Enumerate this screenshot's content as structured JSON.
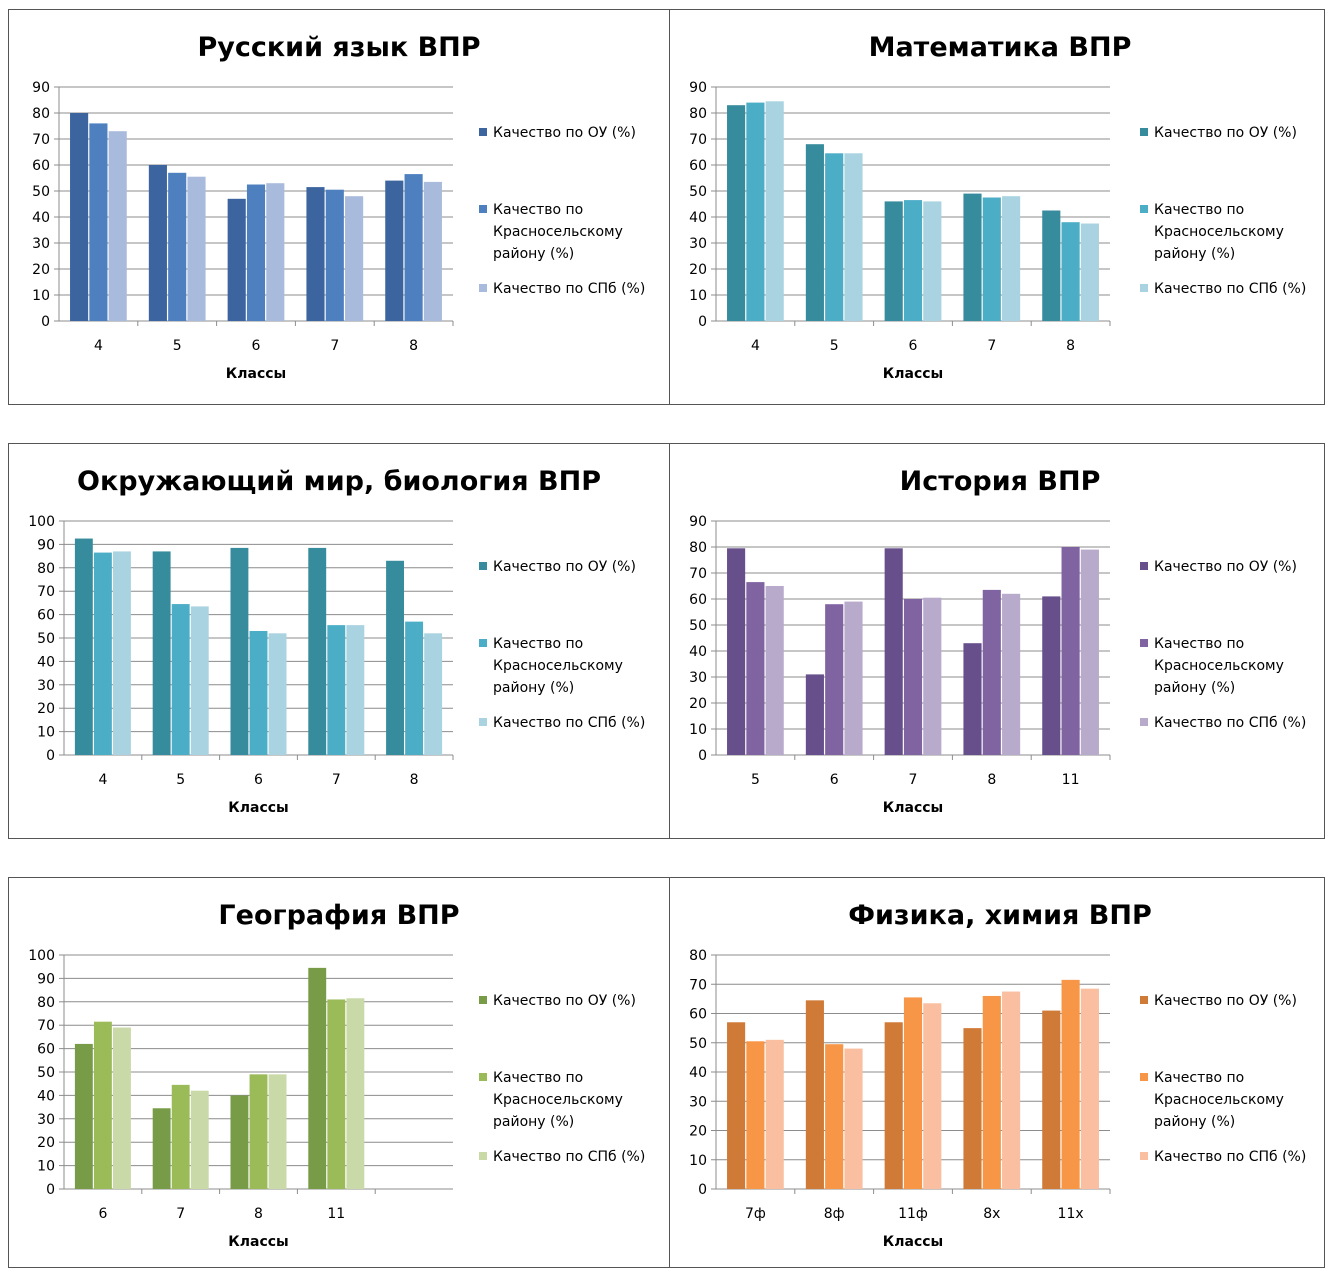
{
  "chart_data": [
    {
      "type": "bar",
      "title": "Русский язык ВПР",
      "xlabel": "Классы",
      "ylabel": "",
      "ylim": [
        0,
        90
      ],
      "ystep": 10,
      "categories": [
        "4",
        "5",
        "6",
        "7",
        "8"
      ],
      "series": [
        {
          "name": "Качество по ОУ  (%)",
          "color": "#3c659f",
          "values": [
            80,
            60,
            47,
            51.5,
            54
          ]
        },
        {
          "name": "Качество по Красносельскому району (%)",
          "color": "#4e80c0",
          "values": [
            76,
            57,
            52.5,
            50.5,
            56.5
          ]
        },
        {
          "name": "Качество по СПб (%)",
          "color": "#a9bbdc",
          "values": [
            73,
            55.5,
            53,
            48,
            53.5
          ]
        }
      ],
      "legend": "right",
      "grid": true
    },
    {
      "type": "bar",
      "title": "Математика ВПР",
      "xlabel": "Классы",
      "ylabel": "",
      "ylim": [
        0,
        90
      ],
      "ystep": 10,
      "categories": [
        "4",
        "5",
        "6",
        "7",
        "8"
      ],
      "series": [
        {
          "name": "Качество по ОУ  (%)",
          "color": "#368b9c",
          "values": [
            83,
            68,
            46,
            49,
            42.5
          ]
        },
        {
          "name": "Качество по Красносельскому району (%)",
          "color": "#4badc6",
          "values": [
            84,
            64.5,
            46.5,
            47.5,
            38
          ]
        },
        {
          "name": "Качество по СПб (%)",
          "color": "#a9d3e0",
          "values": [
            84.5,
            64.5,
            46,
            48,
            37.5
          ]
        }
      ],
      "legend": "right",
      "grid": true
    },
    {
      "type": "bar",
      "title": "Окружающий мир, биология ВПР",
      "xlabel": "Классы",
      "ylabel": "",
      "ylim": [
        0,
        100
      ],
      "ystep": 10,
      "categories": [
        "4",
        "5",
        "6",
        "7",
        "8"
      ],
      "series": [
        {
          "name": "Качество по ОУ  (%)",
          "color": "#368b9c",
          "values": [
            92.5,
            87,
            88.5,
            88.5,
            83
          ]
        },
        {
          "name": "Качество по Красносельскому району (%)",
          "color": "#4badc6",
          "values": [
            86.5,
            64.5,
            53,
            55.5,
            57
          ]
        },
        {
          "name": "Качество по СПб (%)",
          "color": "#a9d3e0",
          "values": [
            87,
            63.5,
            52,
            55.5,
            52
          ]
        }
      ],
      "legend": "right",
      "grid": true
    },
    {
      "type": "bar",
      "title": "История ВПР",
      "xlabel": "Классы",
      "ylabel": "",
      "ylim": [
        0,
        90
      ],
      "ystep": 10,
      "categories": [
        "5",
        "6",
        "7",
        "8",
        "11"
      ],
      "series": [
        {
          "name": "Качество по ОУ  (%)",
          "color": "#674f8c",
          "values": [
            79.5,
            31,
            79.5,
            43,
            61
          ]
        },
        {
          "name": "Качество по Красносельскому району (%)",
          "color": "#8064a2",
          "values": [
            66.5,
            58,
            60,
            63.5,
            80
          ]
        },
        {
          "name": "Качество по СПб (%)",
          "color": "#b8aacb",
          "values": [
            65,
            59,
            60.5,
            62,
            79
          ]
        }
      ],
      "legend": "right",
      "grid": true
    },
    {
      "type": "bar",
      "title": "География ВПР",
      "xlabel": "Классы",
      "ylabel": "",
      "ylim": [
        0,
        100
      ],
      "ystep": 10,
      "categories": [
        "6",
        "7",
        "8",
        "11"
      ],
      "series": [
        {
          "name": "Качество по ОУ  (%)",
          "color": "#789b48",
          "values": [
            62,
            34.5,
            40,
            94.5
          ]
        },
        {
          "name": "Качество по Красносельскому району (%)",
          "color": "#9bbb59",
          "values": [
            71.5,
            44.5,
            49,
            81
          ]
        },
        {
          "name": "Качество по СПб (%)",
          "color": "#c9d9a8",
          "values": [
            69,
            42,
            49,
            81.5
          ]
        }
      ],
      "legend": "right",
      "grid": true
    },
    {
      "type": "bar",
      "title": "Физика, химия ВПР",
      "xlabel": "Классы",
      "ylabel": "",
      "ylim": [
        0,
        80
      ],
      "ystep": 10,
      "categories": [
        "7ф",
        "8ф",
        "11ф",
        "8х",
        "11х"
      ],
      "series": [
        {
          "name": "Качество по ОУ  (%)",
          "color": "#d07a38",
          "values": [
            57,
            64.5,
            57,
            55,
            61
          ]
        },
        {
          "name": "Качество по Красносельскому району (%)",
          "color": "#f79646",
          "values": [
            50.5,
            49.5,
            65.5,
            66,
            71.5
          ]
        },
        {
          "name": "Качество по СПб (%)",
          "color": "#f9bfa0",
          "values": [
            51,
            48,
            63.5,
            67.5,
            68.5
          ]
        }
      ],
      "legend": "right",
      "grid": true
    }
  ]
}
